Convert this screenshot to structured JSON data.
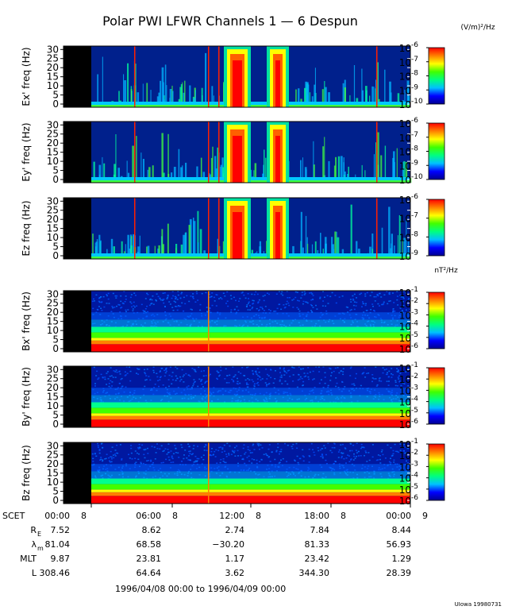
{
  "title": "Polar PWI LFWR Channels 1 — 6 Despun",
  "electric_unit": "(V/m)²/Hz",
  "magnetic_unit": "nT²/Hz",
  "credit": "UIowa 19980731",
  "time_range": "1996/04/08 00:00 to 1996/04/09 00:00",
  "colormap": [
    "#000090",
    "#0000ff",
    "#00c0ff",
    "#00ff80",
    "#40ff00",
    "#ffff00",
    "#ff8000",
    "#ff0000"
  ],
  "chart_data": [
    {
      "type": "heatmap",
      "ylabel": "Ex' freq (Hz)",
      "yticks": [
        0,
        5,
        10,
        15,
        20,
        25,
        30
      ],
      "ylim": [
        0,
        31
      ],
      "colorbar": {
        "min_exp": -10,
        "max_exp": -6,
        "labels": [
          "10",
          "10",
          "10",
          "10",
          "10"
        ],
        "exps": [
          "-6",
          "-7",
          "-8",
          "-9",
          "-10"
        ]
      }
    },
    {
      "type": "heatmap",
      "ylabel": "Ey' freq (Hz)",
      "yticks": [
        0,
        5,
        10,
        15,
        20,
        25,
        30
      ],
      "ylim": [
        0,
        31
      ],
      "colorbar": {
        "min_exp": -10,
        "max_exp": -6,
        "labels": [
          "10",
          "10",
          "10",
          "10",
          "10"
        ],
        "exps": [
          "-6",
          "-7",
          "-8",
          "-9",
          "-10"
        ]
      }
    },
    {
      "type": "heatmap",
      "ylabel": "Ez freq (Hz)",
      "yticks": [
        0,
        5,
        10,
        15,
        20,
        25,
        30
      ],
      "ylim": [
        0,
        31
      ],
      "colorbar": {
        "min_exp": -9,
        "max_exp": -6,
        "labels": [
          "10",
          "10",
          "10",
          "10"
        ],
        "exps": [
          "-6",
          "-7",
          "-8",
          "-9"
        ]
      }
    },
    {
      "type": "heatmap",
      "ylabel": "Bx' freq (Hz)",
      "yticks": [
        0,
        5,
        10,
        15,
        20,
        25,
        30
      ],
      "ylim": [
        0,
        31
      ],
      "colorbar": {
        "min_exp": -6,
        "max_exp": -1,
        "labels": [
          "10",
          "10",
          "10",
          "10",
          "10",
          "10"
        ],
        "exps": [
          "-1",
          "-2",
          "-3",
          "-4",
          "-5",
          "-6"
        ]
      }
    },
    {
      "type": "heatmap",
      "ylabel": "By' freq (Hz)",
      "yticks": [
        0,
        5,
        10,
        15,
        20,
        25,
        30
      ],
      "ylim": [
        0,
        31
      ],
      "colorbar": {
        "min_exp": -6,
        "max_exp": -1,
        "labels": [
          "10",
          "10",
          "10",
          "10",
          "10",
          "10"
        ],
        "exps": [
          "-1",
          "-2",
          "-3",
          "-4",
          "-5",
          "-6"
        ]
      }
    },
    {
      "type": "heatmap",
      "ylabel": "Bz freq (Hz)",
      "yticks": [
        0,
        5,
        10,
        15,
        20,
        25,
        30
      ],
      "ylim": [
        0,
        31
      ],
      "colorbar": {
        "min_exp": -6,
        "max_exp": -1,
        "labels": [
          "10",
          "10",
          "10",
          "10",
          "10",
          "10"
        ],
        "exps": [
          "-1",
          "-2",
          "-3",
          "-4",
          "-5",
          "-6"
        ]
      }
    }
  ],
  "time_axis": {
    "row_labels": [
      "SCET",
      "R",
      "λ",
      "MLT",
      "L"
    ],
    "row_subscripts": [
      "",
      "E",
      "m",
      "",
      ""
    ],
    "columns": [
      {
        "time": "00:00",
        "day": "8",
        "values": [
          "7.52",
          "81.04",
          "9.87",
          "308.46"
        ]
      },
      {
        "time": "06:00",
        "day": "8",
        "values": [
          "8.62",
          "68.58",
          "23.81",
          "64.64"
        ]
      },
      {
        "time": "12:00",
        "day": "8",
        "values": [
          "2.74",
          "−30.20",
          "1.17",
          "3.62"
        ]
      },
      {
        "time": "18:00",
        "day": "8",
        "values": [
          "7.84",
          "81.33",
          "23.42",
          "344.30"
        ]
      },
      {
        "time": "00:00",
        "day": "9",
        "values": [
          "8.44",
          "56.93",
          "1.29",
          "28.39"
        ]
      }
    ]
  }
}
